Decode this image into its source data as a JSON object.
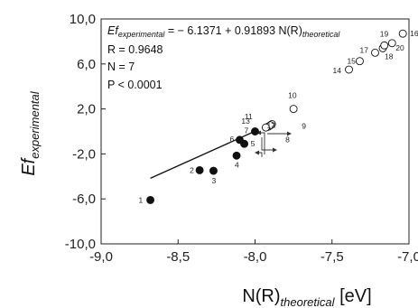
{
  "chart_data": {
    "type": "scatter",
    "xlabel_main": "N(R)",
    "xlabel_sub": "theoretical",
    "xlabel_unit": " [eV]",
    "ylabel_main": "Ef",
    "ylabel_sub": "experimental",
    "xlim": [
      -9.0,
      -7.0
    ],
    "ylim": [
      -10.0,
      10.0
    ],
    "x_ticks": [
      -9.0,
      -8.5,
      -8.0,
      -7.5,
      -7.0
    ],
    "x_tick_labels": [
      "-9,0",
      "-8,5",
      "-8,0",
      "-7,5",
      "-7,0"
    ],
    "y_ticks": [
      -10.0,
      -6.0,
      -2.0,
      2.0,
      6.0,
      10.0
    ],
    "y_tick_labels": [
      "-10,0",
      "-6,0",
      "-2,0",
      "2,0",
      "6,0",
      "10,0"
    ],
    "grid": false,
    "fit_line": {
      "intercept": -6.1371,
      "slope": 0.91893,
      "x_range": [
        -8.68,
        -8.0
      ]
    },
    "annotations": {
      "equation_lhs_main": "Ef",
      "equation_lhs_sub": "experimental",
      "equation_rhs": " = − 6.1371 + 0.91893 N(R)",
      "equation_rhs_sub": "theoretical",
      "r": "R = 0.9648",
      "n": "N = 7",
      "p": "P < 0.0001"
    },
    "series": [
      {
        "marker": "filled",
        "points": [
          {
            "label": "1",
            "x": -8.68,
            "y": -6.1
          },
          {
            "label": "2",
            "x": -8.36,
            "y": -3.45
          },
          {
            "label": "3",
            "x": -8.27,
            "y": -3.5
          },
          {
            "label": "4",
            "x": -8.12,
            "y": -2.15
          },
          {
            "label": "5",
            "x": -8.07,
            "y": -1.1
          },
          {
            "label": "6",
            "x": -8.1,
            "y": -0.75
          },
          {
            "label": "7",
            "x": -8.0,
            "y": 0.0
          }
        ]
      },
      {
        "marker": "open",
        "points": [
          {
            "label": "8",
            "x": -7.92,
            "y": 0.4
          },
          {
            "label": "9",
            "x": -7.89,
            "y": 0.65
          },
          {
            "label": "10",
            "x": -7.75,
            "y": 2.0
          },
          {
            "label": "11",
            "x": -7.91,
            "y": 0.45
          },
          {
            "label": "12",
            "x": -7.9,
            "y": 0.55
          },
          {
            "label": "13",
            "x": -7.93,
            "y": 0.35
          },
          {
            "label": "14",
            "x": -7.39,
            "y": 5.5
          },
          {
            "label": "15",
            "x": -7.32,
            "y": 6.25
          },
          {
            "label": "16",
            "x": -7.04,
            "y": 8.7
          },
          {
            "label": "17",
            "x": -7.22,
            "y": 7.0
          },
          {
            "label": "18",
            "x": -7.17,
            "y": 7.4
          },
          {
            "label": "19",
            "x": -7.16,
            "y": 7.65
          },
          {
            "label": "20",
            "x": -7.11,
            "y": 7.85
          }
        ]
      }
    ]
  }
}
